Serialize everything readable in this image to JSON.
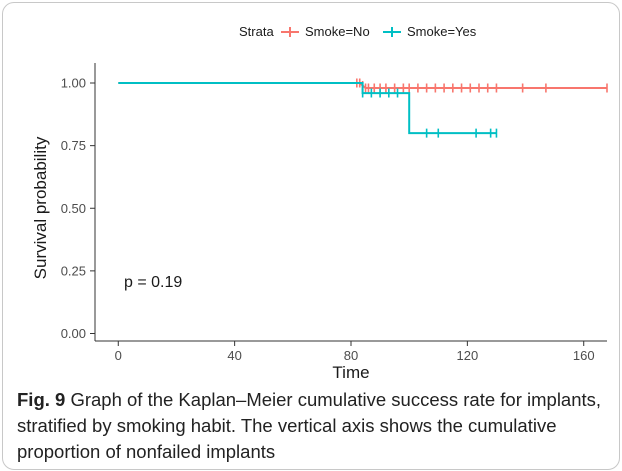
{
  "chart_data": {
    "type": "line",
    "subtype": "kaplan-meier step",
    "xlabel": "Time",
    "ylabel": "Survival probability",
    "xlim": [
      -8,
      168
    ],
    "ylim": [
      -0.03,
      1.08
    ],
    "x_ticks": [
      0,
      40,
      80,
      120,
      160
    ],
    "x_tick_labels": [
      "0",
      "40",
      "80",
      "120",
      "160"
    ],
    "y_ticks": [
      0.0,
      0.25,
      0.5,
      0.75,
      1.0
    ],
    "y_tick_labels": [
      "0.00",
      "0.25",
      "0.50",
      "0.75",
      "1.00"
    ],
    "grid": false,
    "legend": {
      "title": "Strata",
      "placement": "top",
      "entries": [
        "Smoke=No",
        "Smoke=Yes"
      ]
    },
    "annotation": "p = 0.19",
    "series": [
      {
        "name": "Smoke=No",
        "color": "#f8766d",
        "steps": [
          [
            0,
            1.0
          ],
          [
            83,
            1.0
          ],
          [
            84,
            0.99
          ],
          [
            85,
            0.98
          ],
          [
            168,
            0.98
          ]
        ],
        "censor_x": [
          82,
          83,
          84,
          85,
          86,
          88,
          90,
          92,
          95,
          98,
          100,
          103,
          106,
          109,
          112,
          115,
          118,
          121,
          124,
          127,
          130,
          139,
          147,
          168
        ],
        "end_x": 168
      },
      {
        "name": "Smoke=Yes",
        "color": "#00bfc4",
        "steps": [
          [
            0,
            1.0
          ],
          [
            84,
            1.0
          ],
          [
            84,
            0.96
          ],
          [
            100,
            0.96
          ],
          [
            100,
            0.8
          ],
          [
            130,
            0.8
          ]
        ],
        "censor_x": [
          84,
          87,
          90,
          93,
          96,
          106,
          110,
          123,
          128,
          130
        ],
        "end_x": 130
      }
    ]
  },
  "caption": {
    "label": "Fig. 9",
    "text": "Graph of the Kaplan–Meier cumulative success rate for implants, stratified by smoking habit. The vertical axis shows the cumulative proportion of nonfailed implants"
  }
}
